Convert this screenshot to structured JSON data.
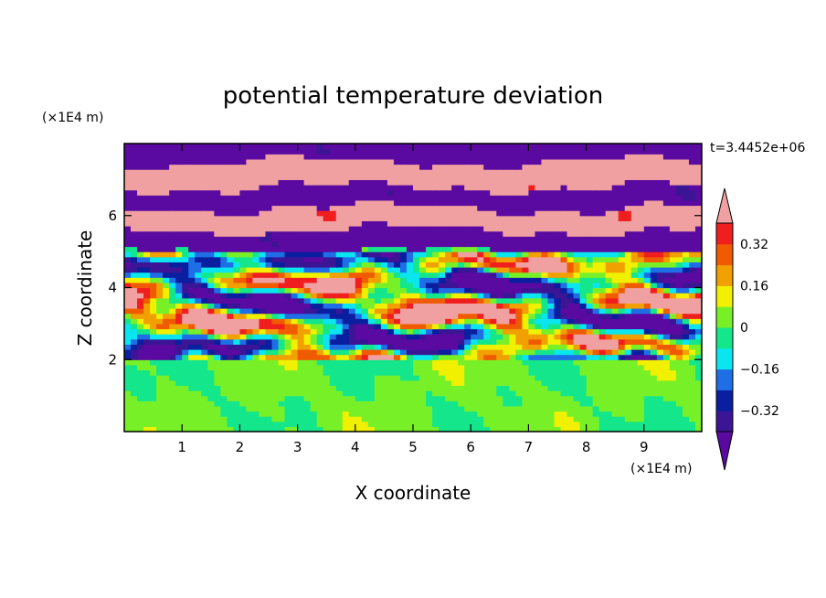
{
  "chart_data": {
    "type": "heatmap",
    "title": "potential temperature deviation",
    "xlabel": "X coordinate",
    "ylabel": "Z coordinate",
    "x_unit": "(×1E4 m)",
    "y_unit": "(×1E4 m)",
    "time_label": "t=3.4452e+06",
    "xlim": [
      0,
      10
    ],
    "ylim": [
      0,
      8
    ],
    "x_ticks": [
      "1",
      "2",
      "3",
      "4",
      "5",
      "6",
      "7",
      "8",
      "9"
    ],
    "y_ticks": [
      "2",
      "4",
      "6"
    ],
    "colorbar": {
      "tick_labels": [
        "0.32",
        "0.16",
        "0",
        "-0.16",
        "-0.32"
      ],
      "tick_values": [
        0.32,
        0.16,
        0,
        -0.16,
        -0.32
      ],
      "levels": [
        -0.4,
        -0.32,
        -0.24,
        -0.16,
        -0.08,
        0,
        0.08,
        0.16,
        0.24,
        0.32,
        0.4
      ],
      "colors": [
        "#5a0aa0",
        "#3c1496",
        "#0a1ea0",
        "#1e6ee6",
        "#0ae6f0",
        "#14e68c",
        "#78f028",
        "#f0f000",
        "#f0a000",
        "#f05a00",
        "#f01e1e",
        "#f0a0a0"
      ],
      "extend": "both"
    },
    "layers": [
      {
        "z": [
          7.5,
          8.0
        ],
        "value": -0.45,
        "note": "purple band"
      },
      {
        "z": [
          6.8,
          7.5
        ],
        "value": 0.45
      },
      {
        "z": [
          6.2,
          6.8
        ],
        "value": -0.45
      },
      {
        "z": [
          5.6,
          6.2
        ],
        "value": 0.45
      },
      {
        "z": [
          5.0,
          5.6
        ],
        "value": -0.45
      },
      {
        "z": [
          2.0,
          5.0
        ],
        "value": 0.0
      },
      {
        "z": [
          0.0,
          2.0
        ],
        "value": 0.02
      }
    ]
  }
}
